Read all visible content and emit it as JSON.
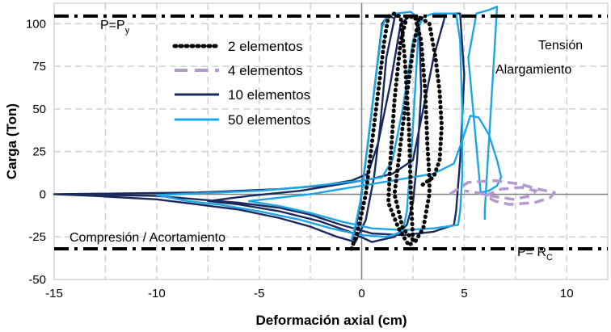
{
  "chart_data": {
    "type": "line",
    "title": "",
    "xlabel": "Deformación axial (cm)",
    "ylabel": "Carga (Ton)",
    "xlim": [
      -15,
      12
    ],
    "ylim": [
      -50,
      112
    ],
    "xticks": [
      -15,
      -10,
      -5,
      0,
      5,
      10
    ],
    "yticks": [
      -50,
      -25,
      0,
      25,
      50,
      75,
      100
    ],
    "grid": "horizontal and vertical dashed",
    "legend_position": "top-left",
    "reference_lines": [
      {
        "name": "P=Py",
        "label_main": "P=P",
        "label_sub": "y",
        "y": 104.5,
        "style": "dash-dot"
      },
      {
        "name": "P=Rc",
        "label_main": "P= R",
        "label_sub": "C",
        "y": -32,
        "style": "dash-dot"
      }
    ],
    "annotations": {
      "tension_1": "Tensión",
      "tension_2": "Alargamiento",
      "compression": "Compresión / Acortamiento"
    },
    "series": [
      {
        "name": "2 elementos",
        "color": "#000000",
        "style": "dotted",
        "points": [
          [
            -0.5,
            -32
          ],
          [
            -0.2,
            -22
          ],
          [
            0.2,
            0
          ],
          [
            0.5,
            30
          ],
          [
            0.8,
            60
          ],
          [
            1.1,
            90
          ],
          [
            1.3,
            104
          ],
          [
            1.6,
            106
          ],
          [
            1.9,
            104
          ],
          [
            2.1,
            80
          ],
          [
            2.3,
            40
          ],
          [
            2.4,
            0
          ],
          [
            2.5,
            -28
          ],
          [
            2.3,
            -30
          ],
          [
            1.8,
            -20
          ],
          [
            1.3,
            -5
          ],
          [
            1.4,
            20
          ],
          [
            1.6,
            55
          ],
          [
            1.9,
            90
          ],
          [
            2.2,
            104
          ],
          [
            2.6,
            104
          ],
          [
            2.9,
            90
          ],
          [
            3.1,
            60
          ],
          [
            3.2,
            30
          ],
          [
            3.3,
            10
          ],
          [
            3.3,
            0
          ],
          [
            3.0,
            -20
          ],
          [
            2.6,
            -28
          ],
          [
            2.0,
            -20
          ],
          [
            1.6,
            0
          ],
          [
            2.0,
            40
          ],
          [
            2.5,
            85
          ],
          [
            2.8,
            104
          ],
          [
            3.3,
            100
          ],
          [
            3.6,
            80
          ],
          [
            3.8,
            60
          ],
          [
            3.9,
            40
          ],
          [
            3.8,
            20
          ],
          [
            3.5,
            10
          ],
          [
            2.9,
            5
          ]
        ]
      },
      {
        "name": "4 elementos",
        "color": "#b499cc",
        "style": "dashed",
        "points": [
          [
            4.3,
            0
          ],
          [
            5.2,
            7
          ],
          [
            6.5,
            8
          ],
          [
            7.7,
            6
          ],
          [
            8.6,
            3
          ],
          [
            9.4,
            1
          ],
          [
            9.2,
            -2
          ],
          [
            8.4,
            -5
          ],
          [
            7.2,
            -6
          ],
          [
            6.5,
            -4
          ],
          [
            6.0,
            -1
          ],
          [
            6.8,
            3
          ],
          [
            7.8,
            4
          ],
          [
            8.5,
            2
          ],
          [
            8.2,
            -1
          ],
          [
            7.4,
            -3
          ],
          [
            6.3,
            -1
          ],
          [
            5.6,
            1
          ],
          [
            5.0,
            2
          ]
        ]
      },
      {
        "name": "10 elementos",
        "color": "#1b2a5e",
        "style": "solid",
        "points": [
          [
            -0.5,
            -28
          ],
          [
            -0.3,
            -20
          ],
          [
            -0.1,
            -8
          ],
          [
            0.3,
            30
          ],
          [
            0.7,
            70
          ],
          [
            1.0,
            100
          ],
          [
            1.3,
            105
          ],
          [
            1.6,
            103
          ],
          [
            1.2,
            80
          ],
          [
            0.9,
            40
          ],
          [
            0.6,
            10
          ],
          [
            0.2,
            -15
          ],
          [
            -0.3,
            -28
          ],
          [
            -1.2,
            -25
          ],
          [
            -2.5,
            -19
          ],
          [
            -4.0,
            -14
          ],
          [
            -6.0,
            -9
          ],
          [
            -8.0,
            -6
          ],
          [
            -10.0,
            -3
          ],
          [
            -13.0,
            -1
          ],
          [
            -15.0,
            0
          ],
          [
            -12.0,
            0.4
          ],
          [
            -8.0,
            1
          ],
          [
            -4.0,
            3
          ],
          [
            -2.0,
            5
          ],
          [
            -0.5,
            8
          ],
          [
            0.3,
            12
          ],
          [
            0.8,
            30
          ],
          [
            1.4,
            65
          ],
          [
            1.9,
            100
          ],
          [
            2.4,
            105
          ],
          [
            2.8,
            104
          ],
          [
            2.9,
            60
          ],
          [
            2.7,
            20
          ],
          [
            2.5,
            -5
          ],
          [
            2.2,
            -18
          ],
          [
            1.6,
            -25
          ],
          [
            0.5,
            -28
          ],
          [
            -0.6,
            -22
          ],
          [
            -2.0,
            -16
          ],
          [
            -4.0,
            -10
          ],
          [
            -6.0,
            -6
          ],
          [
            -7.5,
            -4
          ],
          [
            -5.5,
            -1
          ],
          [
            -3.0,
            2
          ],
          [
            -1.0,
            6
          ],
          [
            0.5,
            9
          ],
          [
            1.5,
            12
          ],
          [
            2.5,
            20
          ],
          [
            3.5,
            80
          ],
          [
            4.1,
            106
          ],
          [
            4.8,
            106
          ],
          [
            5.0,
            70
          ],
          [
            4.8,
            20
          ],
          [
            4.6,
            -10
          ],
          [
            4.5,
            -18
          ],
          [
            3.5,
            -22
          ],
          [
            2.0,
            -24
          ],
          [
            0.5,
            -23
          ],
          [
            -1.0,
            -18
          ],
          [
            -2.5,
            -12
          ],
          [
            -4.0,
            -8
          ],
          [
            -6.0,
            -5
          ],
          [
            -8.0,
            -3
          ],
          [
            -10.0,
            -1
          ],
          [
            -12.0,
            -0.5
          ],
          [
            -14.0,
            0
          ],
          [
            -15.0,
            0
          ]
        ]
      },
      {
        "name": "50 elementos",
        "color": "#1ea5e3",
        "style": "solid",
        "points": [
          [
            -0.5,
            -27
          ],
          [
            -0.3,
            -18
          ],
          [
            0,
            0
          ],
          [
            0.3,
            30
          ],
          [
            0.6,
            60
          ],
          [
            1.0,
            98
          ],
          [
            1.2,
            104
          ],
          [
            1.7,
            106
          ],
          [
            2.4,
            107
          ],
          [
            2.8,
            103
          ],
          [
            2.6,
            60
          ],
          [
            2.4,
            20
          ],
          [
            2.2,
            -10
          ],
          [
            2.0,
            -22
          ],
          [
            1.2,
            -25
          ],
          [
            0,
            -24
          ],
          [
            -1.5,
            -20
          ],
          [
            -3.0,
            -15
          ],
          [
            -5.0,
            -10
          ],
          [
            -7.0,
            -6
          ],
          [
            -8.5,
            -4
          ],
          [
            -10.0,
            -0.5
          ],
          [
            -8.0,
            0.5
          ],
          [
            -5.0,
            2
          ],
          [
            -3.0,
            4
          ],
          [
            -1.5,
            6
          ],
          [
            0,
            8
          ],
          [
            1.0,
            10
          ],
          [
            1.5,
            20
          ],
          [
            2.0,
            50
          ],
          [
            2.5,
            90
          ],
          [
            3.0,
            104
          ],
          [
            3.5,
            106
          ],
          [
            4.2,
            106
          ],
          [
            4.6,
            106
          ],
          [
            4.8,
            90
          ],
          [
            4.9,
            50
          ],
          [
            4.9,
            10
          ],
          [
            4.8,
            -10
          ],
          [
            4.7,
            -18
          ],
          [
            3.5,
            -20
          ],
          [
            2.0,
            -21
          ],
          [
            0.5,
            -20
          ],
          [
            -1.0,
            -16
          ],
          [
            -2.5,
            -11
          ],
          [
            -4.0,
            -7
          ],
          [
            -5.5,
            -4
          ],
          [
            -4.0,
            -2
          ],
          [
            -2.5,
            0
          ],
          [
            -1.0,
            3
          ],
          [
            0.5,
            6
          ],
          [
            2.0,
            9
          ],
          [
            3.5,
            12
          ],
          [
            4.5,
            18
          ],
          [
            5.0,
            35
          ],
          [
            5.3,
            46
          ],
          [
            5.7,
            45
          ],
          [
            6.2,
            35
          ],
          [
            6.6,
            20
          ],
          [
            6.8,
            10
          ],
          [
            6.6,
            5
          ],
          [
            6.2,
            2
          ],
          [
            5.8,
            1
          ],
          [
            5.2,
            80
          ],
          [
            5.6,
            106
          ],
          [
            6.2,
            108
          ],
          [
            6.6,
            110
          ],
          [
            6.5,
            90
          ],
          [
            6.3,
            50
          ],
          [
            6.1,
            10
          ],
          [
            6.0,
            -10
          ],
          [
            6.0,
            -15
          ]
        ]
      }
    ]
  }
}
